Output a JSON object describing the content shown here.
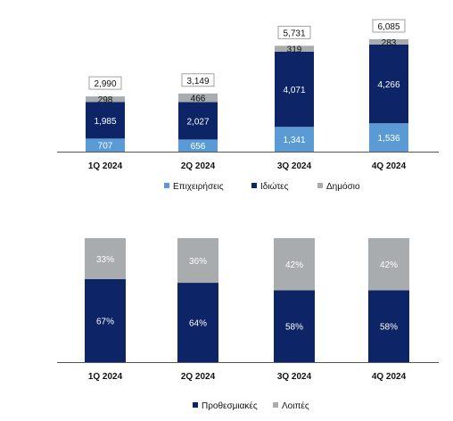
{
  "colors": {
    "navy": "#0d2567",
    "lightblue": "#5b9bd5",
    "gray": "#a8acae",
    "axis": "#555555",
    "bg": "#ffffff"
  },
  "chart_data": [
    {
      "type": "bar",
      "stacked": true,
      "categories": [
        "1Q 2024",
        "2Q 2024",
        "3Q 2024",
        "4Q 2024"
      ],
      "series": [
        {
          "name": "Επιχειρήσεις",
          "values": [
            707,
            656,
            1341,
            1536
          ],
          "color": "#5b9bd5"
        },
        {
          "name": "Ιδιώτες",
          "values": [
            1985,
            2027,
            4071,
            4266
          ],
          "color": "#0d2567"
        },
        {
          "name": "Δημόσιο",
          "values": [
            298,
            466,
            319,
            283
          ],
          "color": "#a8acae"
        }
      ],
      "totals": [
        2990,
        3149,
        5731,
        6085
      ],
      "ylim": [
        0,
        6085
      ],
      "grid": false,
      "legend_position": "bottom",
      "title": "",
      "xlabel": "",
      "ylabel": ""
    },
    {
      "type": "bar",
      "stacked": true,
      "percent": true,
      "categories": [
        "1Q 2024",
        "2Q 2024",
        "3Q 2024",
        "4Q 2024"
      ],
      "series": [
        {
          "name": "Προθεσμιακές",
          "values": [
            67,
            64,
            58,
            58
          ],
          "color": "#0d2567"
        },
        {
          "name": "Λοιπές",
          "values": [
            33,
            36,
            42,
            42
          ],
          "color": "#a8acae"
        }
      ],
      "ylim": [
        0,
        100
      ],
      "grid": false,
      "legend_position": "bottom",
      "title": "",
      "xlabel": "",
      "ylabel": ""
    }
  ]
}
